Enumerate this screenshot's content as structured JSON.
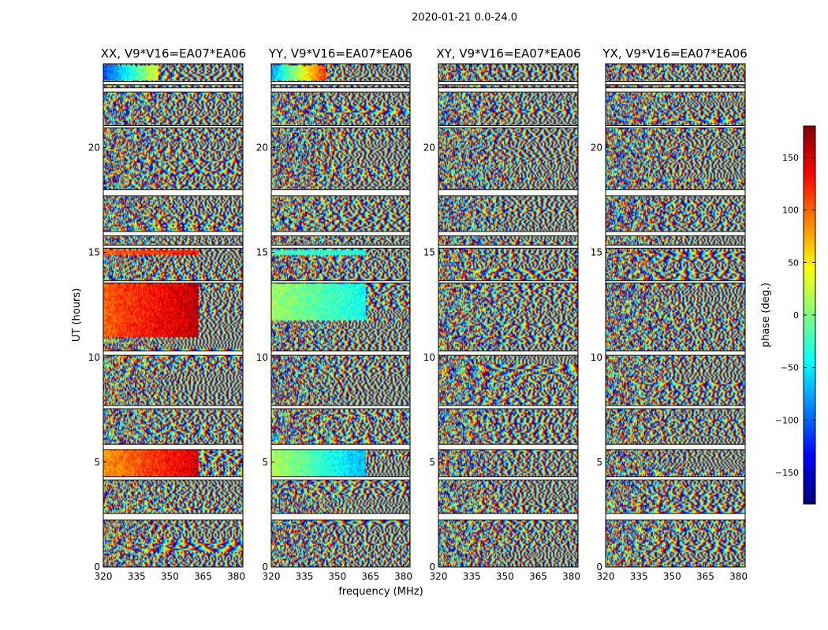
{
  "figure": {
    "suptitle": "2020-01-21 0.0-24.0",
    "xlabel": "frequency (MHz)",
    "ylabel": "UT (hours)"
  },
  "colorbar": {
    "label": "phase (deg.)",
    "range": [
      -180,
      180
    ],
    "ticks": [
      150,
      100,
      50,
      0,
      -50,
      -100,
      -150
    ],
    "tick_labels": [
      "150",
      "100",
      "50",
      "0",
      "−50",
      "−100",
      "−150"
    ],
    "colormap": [
      "#00007f",
      "#0000ff",
      "#007fff",
      "#00ffff",
      "#7fff7f",
      "#ffff00",
      "#ff7f00",
      "#ff0000",
      "#7f0000"
    ]
  },
  "chart_data": [
    {
      "type": "heatmap",
      "title": "XX, V9*V16=EA07*EA06",
      "xlabel": "",
      "ylabel": "UT (hours)",
      "xlim": [
        320,
        383
      ],
      "ylim": [
        0,
        24
      ],
      "xticks": [
        320,
        335,
        350,
        365,
        380
      ],
      "yticks": [
        0,
        5,
        10,
        15,
        20
      ],
      "value": "phase (deg.)",
      "smooth_regions": [
        {
          "t0": 4.3,
          "t1": 5.6,
          "f0": 320,
          "f1": 363,
          "phase_start": 80,
          "phase_end": 150
        },
        {
          "t0": 11.0,
          "t1": 13.5,
          "f0": 320,
          "f1": 363,
          "phase_start": 100,
          "phase_end": 160
        },
        {
          "t0": 14.9,
          "t1": 15.1,
          "f0": 320,
          "f1": 363,
          "phase_start": 100,
          "phase_end": 130
        },
        {
          "t0": 23.2,
          "t1": 23.9,
          "f0": 320,
          "f1": 345,
          "phase_start": -110,
          "phase_end": 40
        }
      ]
    },
    {
      "type": "heatmap",
      "title": "YY, V9*V16=EA07*EA06",
      "xlabel": "frequency (MHz)",
      "ylabel": "",
      "xlim": [
        320,
        383
      ],
      "ylim": [
        0,
        24
      ],
      "xticks": [
        320,
        335,
        350,
        365,
        380
      ],
      "yticks": [
        0,
        5,
        10,
        15,
        20
      ],
      "value": "phase (deg.)",
      "smooth_regions": [
        {
          "t0": 4.3,
          "t1": 5.6,
          "f0": 320,
          "f1": 363,
          "phase_start": 20,
          "phase_end": -70
        },
        {
          "t0": 11.8,
          "t1": 13.5,
          "f0": 320,
          "f1": 363,
          "phase_start": 10,
          "phase_end": -40
        },
        {
          "t0": 14.9,
          "t1": 15.1,
          "f0": 320,
          "f1": 363,
          "phase_start": -20,
          "phase_end": -40
        },
        {
          "t0": 23.2,
          "t1": 23.9,
          "f0": 320,
          "f1": 345,
          "phase_start": -80,
          "phase_end": 120
        }
      ]
    },
    {
      "type": "heatmap",
      "title": "XY, V9*V16=EA07*EA06",
      "xlabel": "",
      "ylabel": "",
      "xlim": [
        320,
        383
      ],
      "ylim": [
        0,
        24
      ],
      "xticks": [
        320,
        335,
        350,
        365,
        380
      ],
      "yticks": [
        0,
        5,
        10,
        15,
        20
      ],
      "value": "phase (deg.)",
      "smooth_regions": []
    },
    {
      "type": "heatmap",
      "title": "YX, V9*V16=EA07*EA06",
      "xlabel": "",
      "ylabel": "",
      "xlim": [
        320,
        383
      ],
      "ylim": [
        0,
        24
      ],
      "xticks": [
        320,
        335,
        350,
        365,
        380
      ],
      "yticks": [
        0,
        5,
        10,
        15,
        20
      ],
      "value": "phase (deg.)",
      "smooth_regions": []
    }
  ],
  "flagged_time_gaps": [
    [
      2.25,
      2.55
    ],
    [
      4.15,
      4.3
    ],
    [
      5.6,
      5.85
    ],
    [
      7.55,
      7.7
    ],
    [
      10.1,
      10.3
    ],
    [
      13.55,
      13.65
    ],
    [
      15.2,
      15.35
    ],
    [
      15.8,
      16.0
    ],
    [
      17.7,
      18.0
    ],
    [
      20.95,
      21.05
    ],
    [
      22.65,
      22.85
    ],
    [
      23.0,
      23.15
    ]
  ]
}
